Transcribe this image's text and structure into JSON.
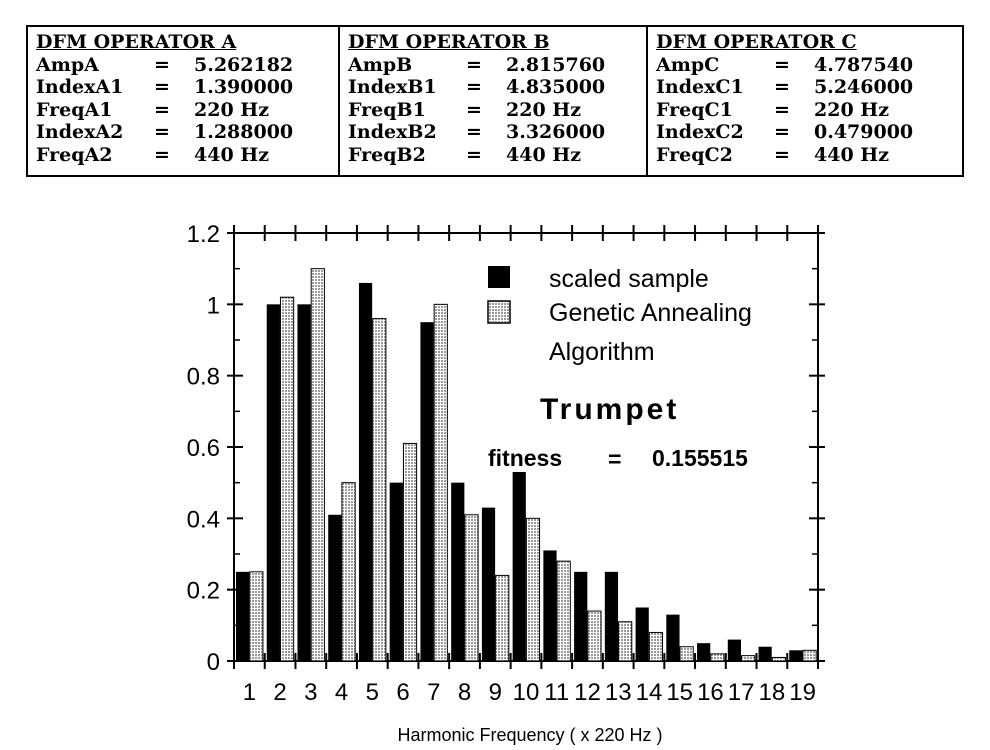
{
  "operators": [
    {
      "title": "DFM OPERATOR A",
      "params": [
        {
          "name": "AmpA",
          "eq": "=",
          "value": "5.262182"
        },
        {
          "name": "IndexA1",
          "eq": "=",
          "value": "1.390000"
        },
        {
          "name": "FreqA1",
          "eq": "=",
          "value": "220 Hz"
        },
        {
          "name": "IndexA2",
          "eq": "=",
          "value": "1.288000"
        },
        {
          "name": "FreqA2",
          "eq": "=",
          "value": "440 Hz"
        }
      ]
    },
    {
      "title": "DFM OPERATOR B",
      "params": [
        {
          "name": "AmpB",
          "eq": "=",
          "value": "2.815760"
        },
        {
          "name": "IndexB1",
          "eq": "=",
          "value": "4.835000"
        },
        {
          "name": "FreqB1",
          "eq": "=",
          "value": "220 Hz"
        },
        {
          "name": "IndexB2",
          "eq": "=",
          "value": "3.326000"
        },
        {
          "name": "FreqB2",
          "eq": "=",
          "value": "440 Hz"
        }
      ]
    },
    {
      "title": "DFM OPERATOR C",
      "params": [
        {
          "name": "AmpC",
          "eq": "=",
          "value": "4.787540"
        },
        {
          "name": "IndexC1",
          "eq": "=",
          "value": "5.246000"
        },
        {
          "name": "FreqC1",
          "eq": "=",
          "value": "220 Hz"
        },
        {
          "name": "IndexC2",
          "eq": "=",
          "value": "0.479000"
        },
        {
          "name": "FreqC2",
          "eq": "=",
          "value": "440 Hz"
        }
      ]
    }
  ],
  "chart_data": {
    "type": "bar",
    "categories": [
      "1",
      "2",
      "3",
      "4",
      "5",
      "6",
      "7",
      "8",
      "9",
      "10",
      "11",
      "12",
      "13",
      "14",
      "15",
      "16",
      "17",
      "18",
      "19"
    ],
    "series": [
      {
        "name": "scaled sample",
        "color": "#000000",
        "values": [
          0.25,
          1.0,
          1.0,
          0.41,
          1.06,
          0.5,
          0.95,
          0.5,
          0.43,
          0.53,
          0.31,
          0.25,
          0.25,
          0.15,
          0.13,
          0.05,
          0.06,
          0.04,
          0.03
        ]
      },
      {
        "name": "Genetic Annealing Algorithm",
        "color": "#c8c8c8",
        "values": [
          0.25,
          1.02,
          1.1,
          0.5,
          0.96,
          0.61,
          1.0,
          0.41,
          0.24,
          0.4,
          0.28,
          0.14,
          0.11,
          0.08,
          0.04,
          0.02,
          0.015,
          0.01,
          0.03
        ]
      }
    ],
    "tick_labels": [
      "1",
      "2",
      "3",
      "4",
      "5",
      "6",
      "7",
      "8",
      "9",
      "10",
      "11",
      "12",
      "13",
      "14",
      "15",
      "16",
      "17",
      "18",
      "19"
    ],
    "xlabel": "Harmonic Frequency ( x 220 Hz )",
    "ylabel": "",
    "ylim": [
      0,
      1.2
    ],
    "yticks": [
      "0",
      "0.2",
      "0.4",
      "0.6",
      "0.8",
      "1",
      "1.2"
    ],
    "legend_position": "top-right",
    "annotations": {
      "instrument": "Trumpet",
      "fitness_label": "fitness",
      "fitness_eq": "=",
      "fitness_value": "0.155515"
    },
    "grid": false
  }
}
